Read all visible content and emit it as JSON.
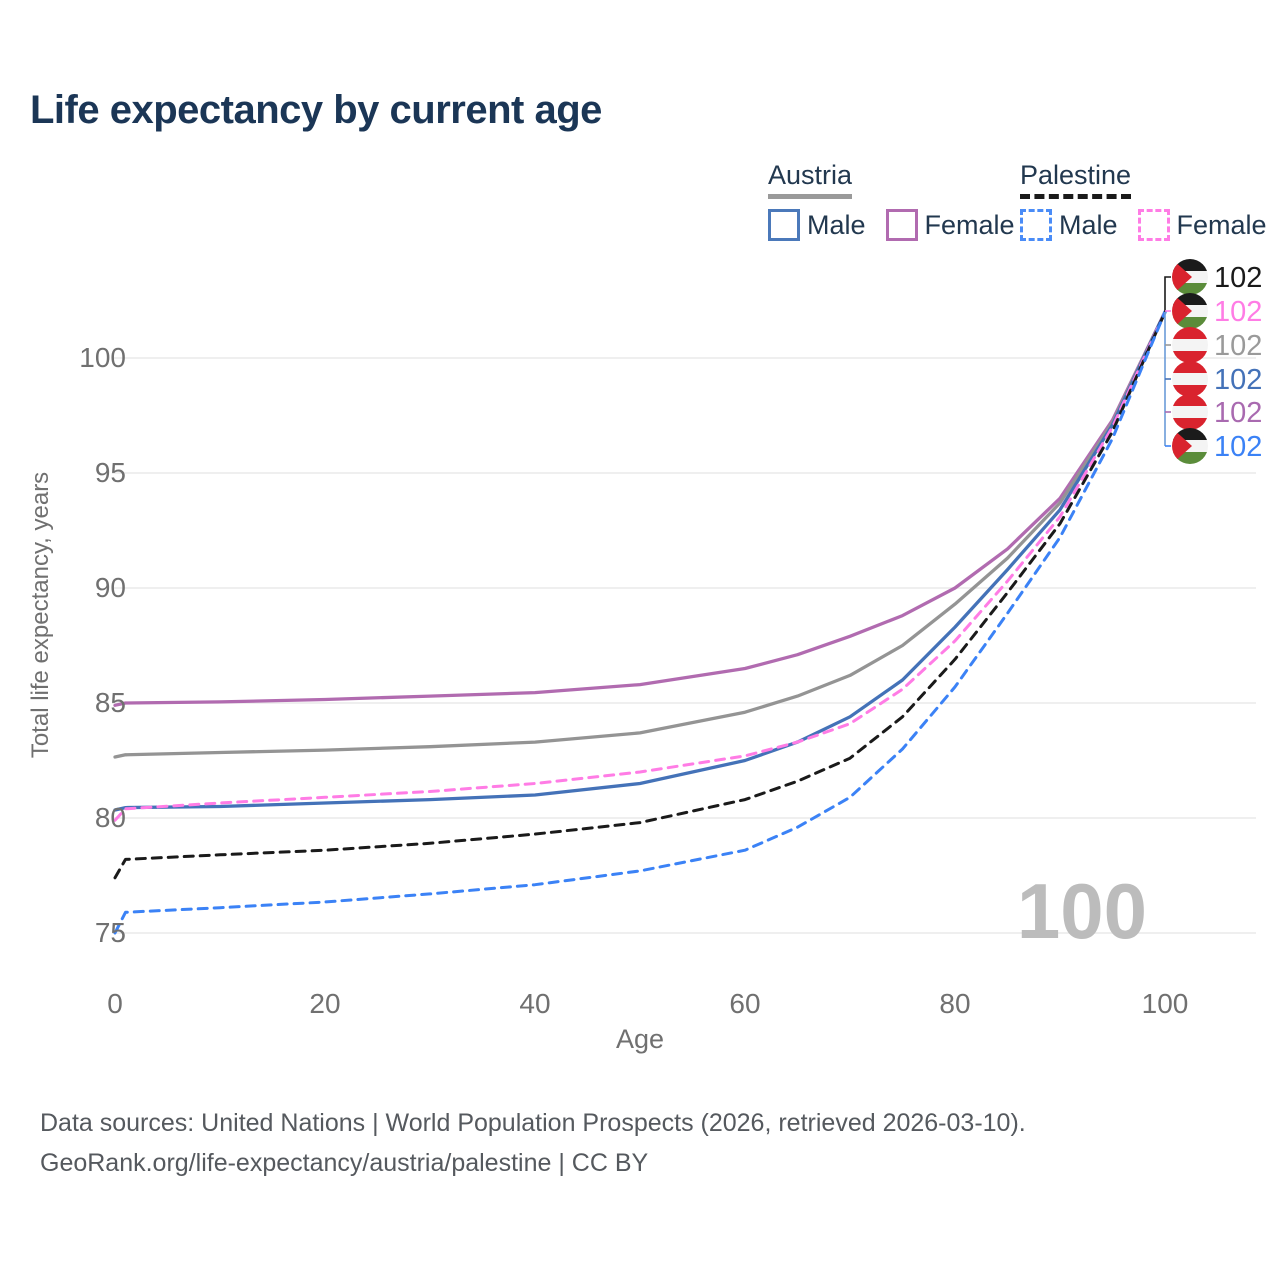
{
  "title": "Life expectancy by current age",
  "legend": {
    "groups": [
      {
        "country": "Austria",
        "line_style": "solid",
        "underline_color": "#9a9a9a",
        "items": [
          {
            "label": "Male",
            "color": "#4b79ba",
            "dashed": false
          },
          {
            "label": "Female",
            "color": "#b16bb0",
            "dashed": false
          }
        ]
      },
      {
        "country": "Palestine",
        "line_style": "dashed",
        "underline_color": "#1a1a1a",
        "items": [
          {
            "label": "Male",
            "color": "#4a8cf7",
            "dashed": true
          },
          {
            "label": "Female",
            "color": "#ff7ce5",
            "dashed": true
          }
        ]
      }
    ]
  },
  "watermark": "100",
  "footer": {
    "line1": "Data sources: United Nations | World Population Prospects (2026, retrieved 2026-03-10).",
    "line2": "GeoRank.org/life-expectancy/austria/palestine | CC BY"
  },
  "chart_data": {
    "type": "line",
    "xlabel": "Age",
    "ylabel": "Total life expectancy, years",
    "xticks": [
      0,
      20,
      40,
      60,
      80,
      100
    ],
    "yticks": [
      75,
      80,
      85,
      90,
      95,
      100
    ],
    "xlim": [
      0,
      100
    ],
    "ylim": [
      73.5,
      103
    ],
    "grid": true,
    "legend_position": "top-right",
    "x": [
      0,
      1,
      10,
      20,
      30,
      40,
      50,
      60,
      65,
      70,
      75,
      80,
      85,
      90,
      95,
      100
    ],
    "series": [
      {
        "name": "Austria Female",
        "country": "Austria",
        "sex": "Female",
        "color": "#b16bb0",
        "dashed": false,
        "values": [
          84.9,
          85.0,
          85.05,
          85.15,
          85.3,
          85.45,
          85.8,
          86.5,
          87.1,
          87.9,
          88.8,
          90.0,
          91.7,
          93.9,
          97.3,
          102
        ]
      },
      {
        "name": "Austria",
        "country": "Austria",
        "sex": "Both",
        "color": "#949494",
        "dashed": false,
        "values": [
          82.65,
          82.75,
          82.85,
          82.95,
          83.1,
          83.3,
          83.7,
          84.6,
          85.3,
          86.2,
          87.5,
          89.3,
          91.3,
          93.7,
          97.2,
          102
        ]
      },
      {
        "name": "Austria Male",
        "country": "Austria",
        "sex": "Male",
        "color": "#4472b8",
        "dashed": false,
        "values": [
          80.35,
          80.45,
          80.5,
          80.65,
          80.8,
          81.0,
          81.5,
          82.5,
          83.3,
          84.4,
          86.0,
          88.3,
          90.8,
          93.4,
          97.1,
          102
        ]
      },
      {
        "name": "Palestine Female",
        "country": "Palestine",
        "sex": "Female",
        "color": "#ff7ce5",
        "dashed": true,
        "values": [
          79.9,
          80.4,
          80.65,
          80.9,
          81.15,
          81.5,
          82.0,
          82.7,
          83.3,
          84.1,
          85.6,
          87.7,
          90.3,
          93.1,
          97.0,
          102
        ]
      },
      {
        "name": "Palestine",
        "country": "Palestine",
        "sex": "Both",
        "color": "#1a1a1a",
        "dashed": true,
        "values": [
          77.4,
          78.2,
          78.4,
          78.6,
          78.9,
          79.3,
          79.8,
          80.8,
          81.6,
          82.6,
          84.4,
          86.9,
          89.8,
          92.8,
          96.8,
          102
        ]
      },
      {
        "name": "Palestine Male",
        "country": "Palestine",
        "sex": "Male",
        "color": "#3b82f6",
        "dashed": true,
        "values": [
          75.0,
          75.9,
          76.1,
          76.35,
          76.7,
          77.1,
          77.7,
          78.6,
          79.6,
          80.9,
          83.0,
          85.7,
          88.9,
          92.2,
          96.5,
          102
        ]
      }
    ],
    "end_labels": [
      {
        "value": "102",
        "color": "#1a1a1a",
        "flag": "palestine",
        "series": "Palestine"
      },
      {
        "value": "102",
        "color": "#ff7ce5",
        "flag": "palestine",
        "series": "Palestine Female"
      },
      {
        "value": "102",
        "color": "#9a9a9a",
        "flag": "austria",
        "series": "Austria"
      },
      {
        "value": "102",
        "color": "#4472b8",
        "flag": "austria",
        "series": "Austria Male"
      },
      {
        "value": "102",
        "color": "#a96ab0",
        "flag": "austria",
        "series": "Austria Female"
      },
      {
        "value": "102",
        "color": "#3b82f6",
        "flag": "palestine",
        "series": "Palestine Male"
      }
    ]
  }
}
